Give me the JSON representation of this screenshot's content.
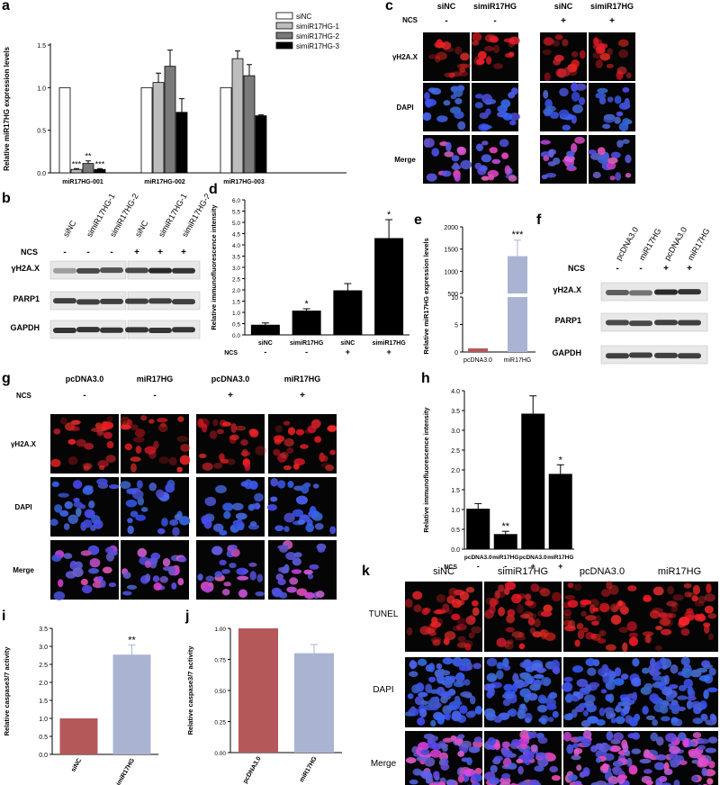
{
  "panel_letters": {
    "a": "a",
    "b": "b",
    "c": "c",
    "d": "d",
    "e": "e",
    "f": "f",
    "g": "g",
    "h": "h",
    "i": "i",
    "j": "j",
    "k": "k"
  },
  "colors": {
    "white": "#ffffff",
    "grey_light": "#bdbdbd",
    "grey_mid": "#7a7a7a",
    "black": "#000000",
    "brick": "#b5585a",
    "lavender": "#aab4d2",
    "red_signal": "#e0202a",
    "blue_signal": "#3a49c8"
  },
  "panel_c": {
    "groups": [
      {
        "label": "siNC",
        "ncs": "-"
      },
      {
        "label": "simiR17HG",
        "ncs": "-"
      },
      {
        "label": "siNC",
        "ncs": "+"
      },
      {
        "label": "simiR17HG",
        "ncs": "+"
      }
    ],
    "ncs_label": "NCS",
    "rows": [
      "γH2A.X",
      "DAPI",
      "Merge"
    ]
  },
  "panel_b": {
    "lanes": [
      "siNC",
      "simiR17HG-1",
      "simiR17HG-2",
      "siNC",
      "simiR17HG-1",
      "simiR17HG-2"
    ],
    "ncs": [
      "-",
      "-",
      "-",
      "+",
      "+",
      "+"
    ],
    "ncs_label": "NCS",
    "rows": [
      "γH2A.X",
      "PARP1",
      "GAPDH"
    ]
  },
  "panel_f": {
    "lanes": [
      "pcDNA3.0",
      "miR17HG",
      "pcDNA3.0",
      "miR17HG"
    ],
    "ncs": [
      "-",
      "-",
      "+",
      "+"
    ],
    "ncs_label": "NCS",
    "rows": [
      "γH2A.X",
      "PARP1",
      "GAPDH"
    ]
  },
  "panel_g": {
    "groups": [
      {
        "label": "pcDNA3.0",
        "ncs": "-"
      },
      {
        "label": "miR17HG",
        "ncs": "-"
      },
      {
        "label": "pcDNA3.0",
        "ncs": "+"
      },
      {
        "label": "miR17HG",
        "ncs": "+"
      }
    ],
    "ncs_label": "NCS",
    "rows": [
      "γH2A.X",
      "DAPI",
      "Merge"
    ]
  },
  "panel_k": {
    "columns": [
      "siNC",
      "simiR17HG",
      "pcDNA3.0",
      "miR17HG"
    ],
    "rows": [
      "TUNEL",
      "DAPI",
      "Merge"
    ]
  },
  "chart_data": [
    {
      "panel": "a",
      "type": "bar",
      "ylabel": "Relative miR17HG expression levels",
      "ylim": [
        0,
        1.5
      ],
      "yticks": [
        "0.0",
        "0.5",
        "1.0",
        "1.5"
      ],
      "categories": [
        "miR17HG-001",
        "miR17HG-002",
        "miR17HG-003"
      ],
      "legend": "top-right",
      "series": [
        {
          "name": "siNC",
          "values": [
            1.0,
            1.0,
            1.0
          ],
          "errors": [
            0,
            0,
            0
          ],
          "stars": [
            "",
            "",
            ""
          ]
        },
        {
          "name": "simiR17HG-1",
          "values": [
            0.04,
            1.06,
            1.34
          ],
          "errors": [
            0.01,
            0.11,
            0.09
          ],
          "stars": [
            "***",
            "",
            ""
          ]
        },
        {
          "name": "simiR17HG-2",
          "values": [
            0.11,
            1.25,
            1.14
          ],
          "errors": [
            0.03,
            0.19,
            0.13
          ],
          "stars": [
            "**",
            "",
            ""
          ]
        },
        {
          "name": "simiR17HG-3",
          "values": [
            0.04,
            0.71,
            0.67
          ],
          "errors": [
            0.01,
            0.16,
            0.01
          ],
          "stars": [
            "***",
            "",
            ""
          ]
        }
      ]
    },
    {
      "panel": "d",
      "type": "bar",
      "ylabel": "Relative immunofluorescence intensity",
      "ylim": [
        0,
        6.0
      ],
      "yticks": [
        "0.0",
        "0.5",
        "1.0",
        "1.5",
        "2.0",
        "2.5",
        "3.0",
        "3.5",
        "4.0",
        "4.5",
        "5.0",
        "5.5",
        "6.0"
      ],
      "categories": [
        "siNC",
        "simiR17HG",
        "siNC",
        "simiR17HG"
      ],
      "ncs_label": "NCS",
      "ncs": [
        "-",
        "-",
        "+",
        "+"
      ],
      "values": [
        0.45,
        1.08,
        1.98,
        4.3
      ],
      "errors": [
        0.08,
        0.08,
        0.3,
        0.82
      ],
      "stars": [
        "",
        "*",
        "",
        "*"
      ]
    },
    {
      "panel": "e",
      "type": "bar",
      "ylabel": "Relative miR17HG expression levels",
      "yticks_lower": [
        "0",
        "5",
        "10"
      ],
      "yticks_upper": [
        "500",
        "1000",
        "1500",
        "2000"
      ],
      "categories": [
        "pcDNA3.0",
        "miR17HG"
      ],
      "values": [
        1,
        1340
      ],
      "errors": [
        0,
        360
      ],
      "stars": [
        "",
        "***"
      ]
    },
    {
      "panel": "h",
      "type": "bar",
      "ylabel": "Relative immunofluorescence intensity",
      "ylim": [
        0,
        4.0
      ],
      "yticks": [
        "0.0",
        "0.5",
        "1.0",
        "1.5",
        "2.0",
        "2.5",
        "3.0",
        "3.5",
        "4.0"
      ],
      "categories": [
        "pcDNA3.0",
        "miR17HG",
        "pcDNA3.0",
        "miR17HG"
      ],
      "ncs_label": "NCS",
      "ncs": [
        "-",
        "-",
        "+",
        "+"
      ],
      "values": [
        1.02,
        0.38,
        3.42,
        1.9
      ],
      "errors": [
        0.13,
        0.07,
        0.45,
        0.23
      ],
      "stars": [
        "",
        "**",
        "",
        "*"
      ]
    },
    {
      "panel": "i",
      "type": "bar",
      "ylabel": "Relative caspase3/7 activity",
      "ylim": [
        0,
        3.5
      ],
      "yticks": [
        "0.0",
        "0.5",
        "1.0",
        "1.5",
        "2.0",
        "2.5",
        "3.0",
        "3.5"
      ],
      "categories": [
        "siNC",
        "simiR17HG"
      ],
      "values": [
        1.0,
        2.77
      ],
      "errors": [
        0,
        0.27
      ],
      "stars": [
        "",
        "**"
      ]
    },
    {
      "panel": "j",
      "type": "bar",
      "ylabel": "Relative caspase3/7 activity",
      "ylim": [
        0,
        1.0
      ],
      "yticks": [
        "0.00",
        "0.25",
        "0.50",
        "0.75",
        "1.00"
      ],
      "categories": [
        "pcDNA3.0",
        "miR17HG"
      ],
      "values": [
        1.0,
        0.8
      ],
      "errors": [
        0,
        0.07
      ],
      "stars": [
        "",
        ""
      ]
    }
  ]
}
